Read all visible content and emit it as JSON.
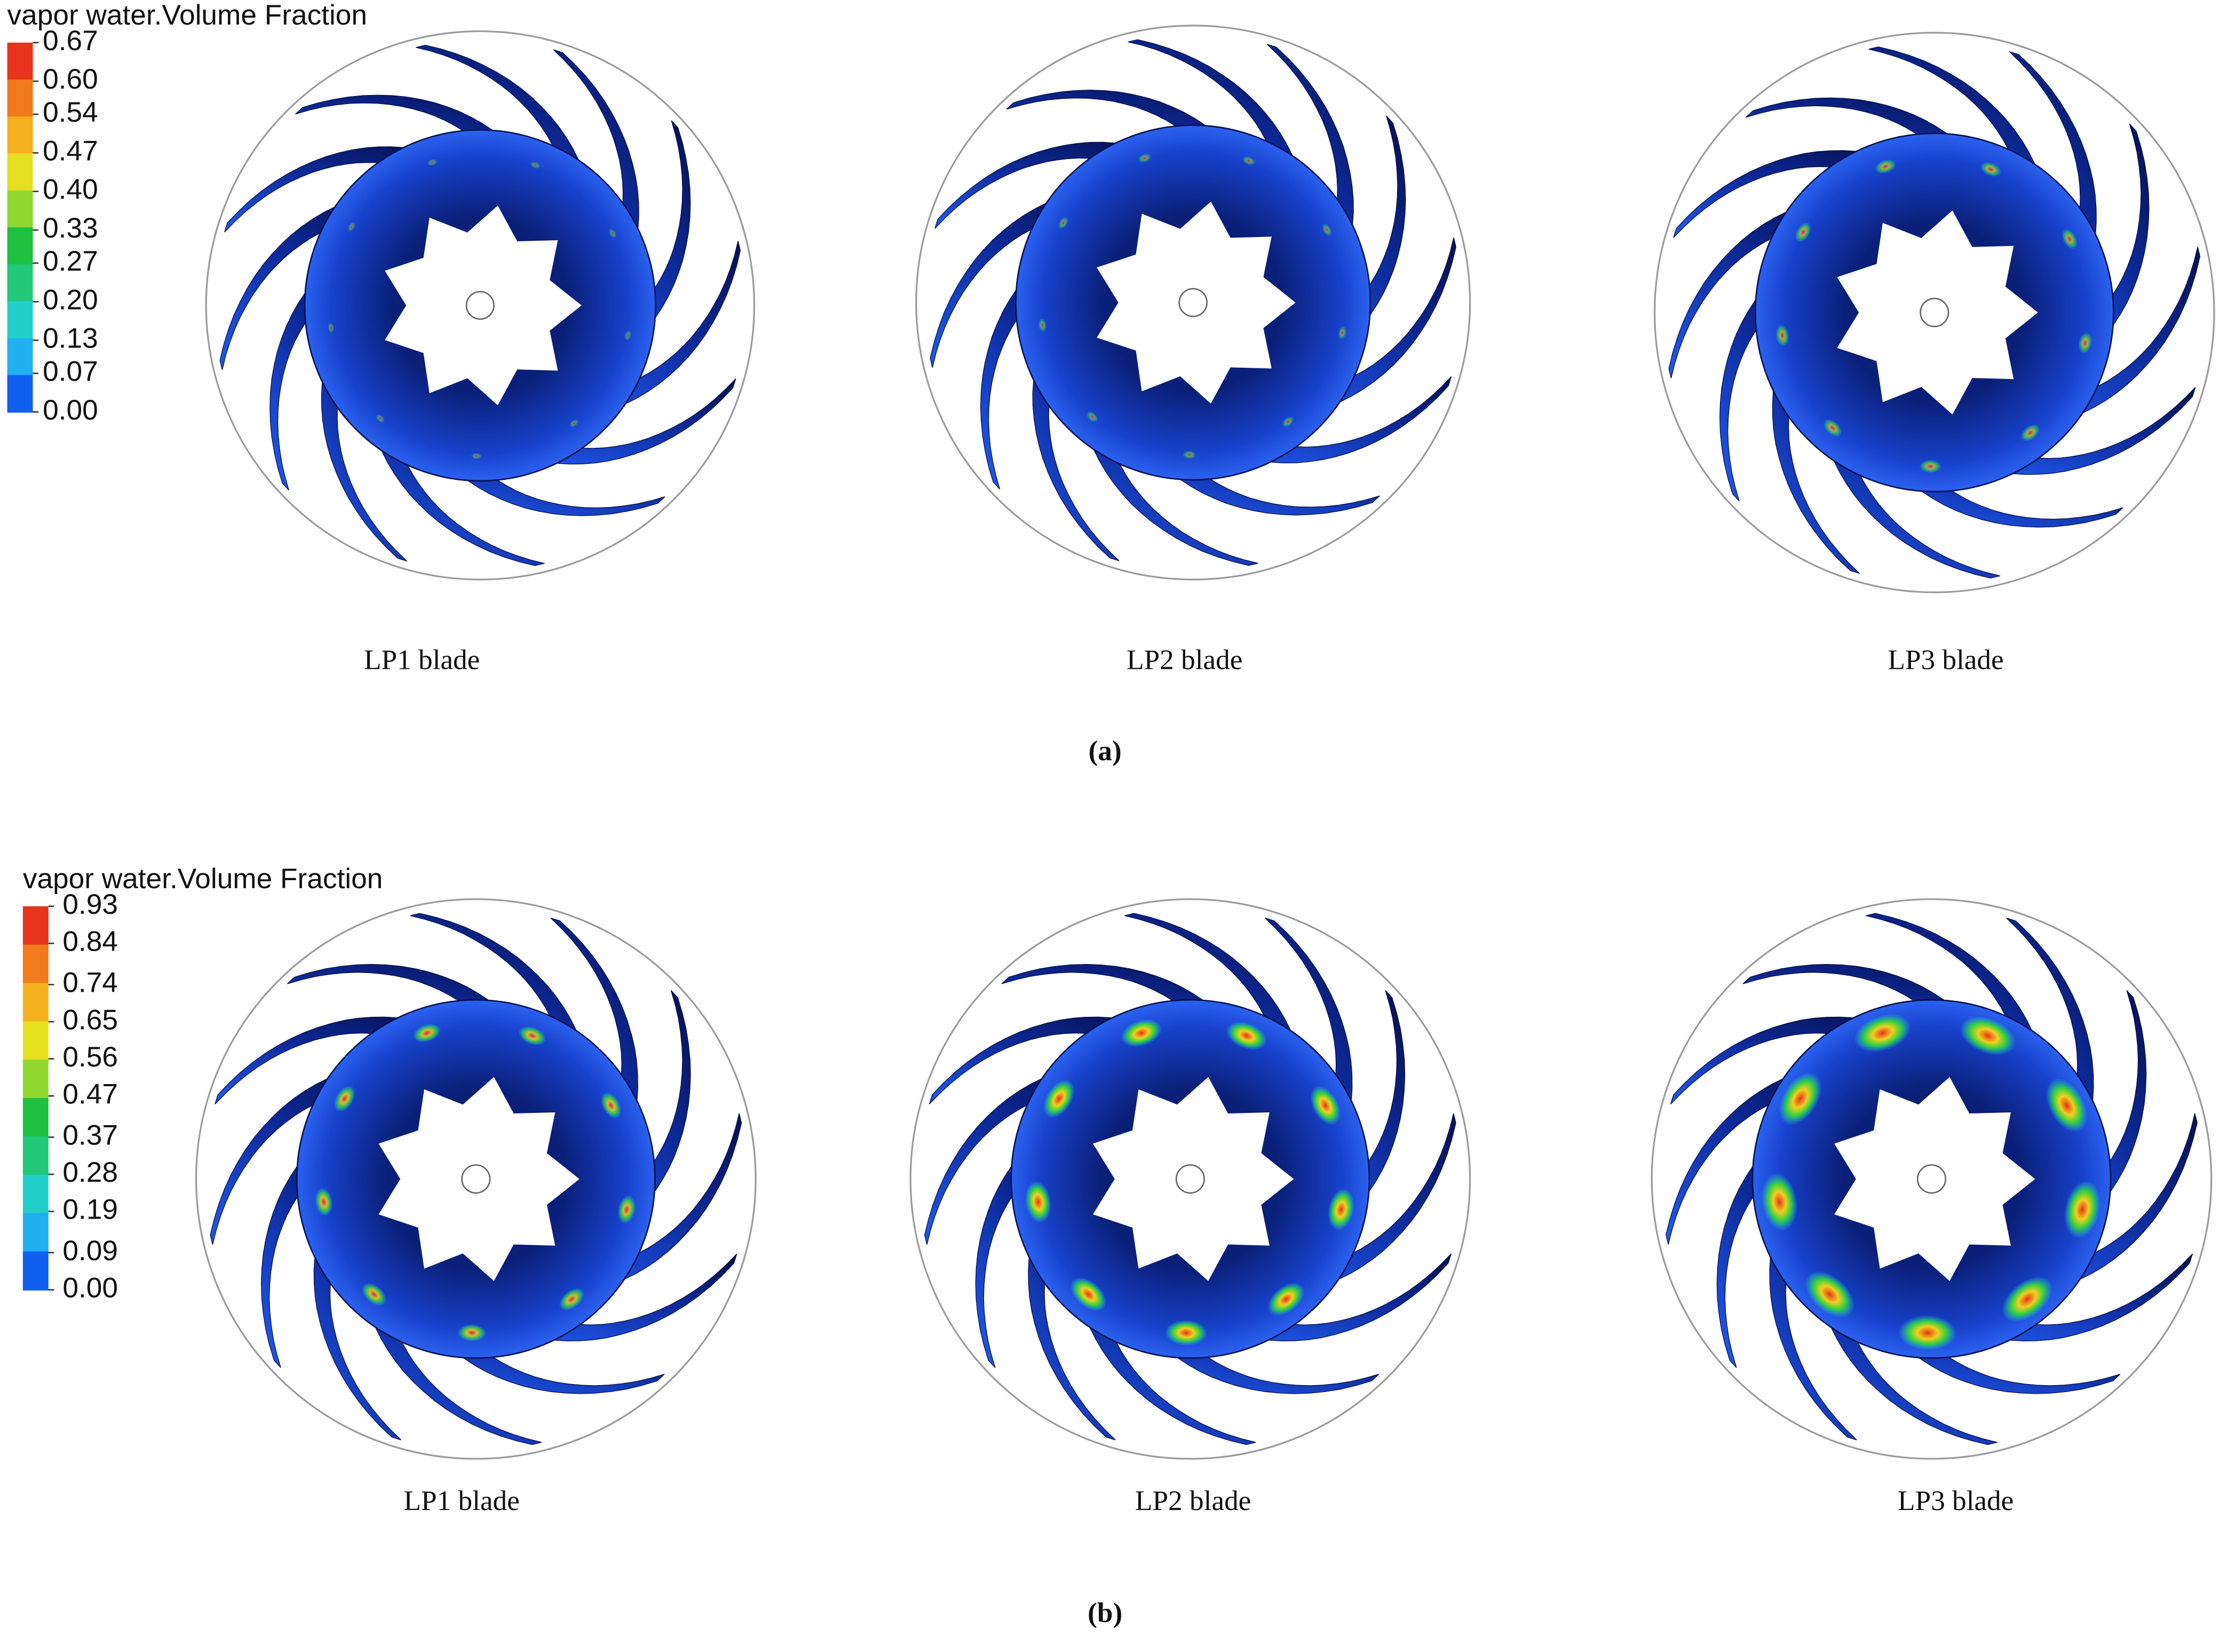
{
  "panels": [
    {
      "label": "(a)",
      "legend": {
        "title": "vapor water.Volume Fraction",
        "ticks": [
          0.67,
          {
            "value": 0.6,
            "label": "0.60"
          },
          0.54,
          0.47,
          {
            "value": 0.4,
            "label": "0.40"
          },
          0.33,
          0.27,
          {
            "value": 0.2,
            "label": "0.20"
          },
          0.13,
          0.07,
          {
            "value": 0,
            "label": "0.00"
          }
        ]
      },
      "impellers": [
        "LP1 blade",
        "LP2 blade",
        "LP3 blade"
      ]
    },
    {
      "label": "(b)",
      "legend": {
        "title": "vapor water.Volume Fraction",
        "ticks": [
          0.93,
          0.84,
          0.74,
          0.65,
          0.56,
          0.47,
          0.37,
          0.28,
          0.19,
          0.09,
          {
            "value": 0,
            "label": "0.00"
          }
        ]
      },
      "impellers": [
        "LP1 blade",
        "LP2 blade",
        "LP3 blade"
      ]
    }
  ]
}
